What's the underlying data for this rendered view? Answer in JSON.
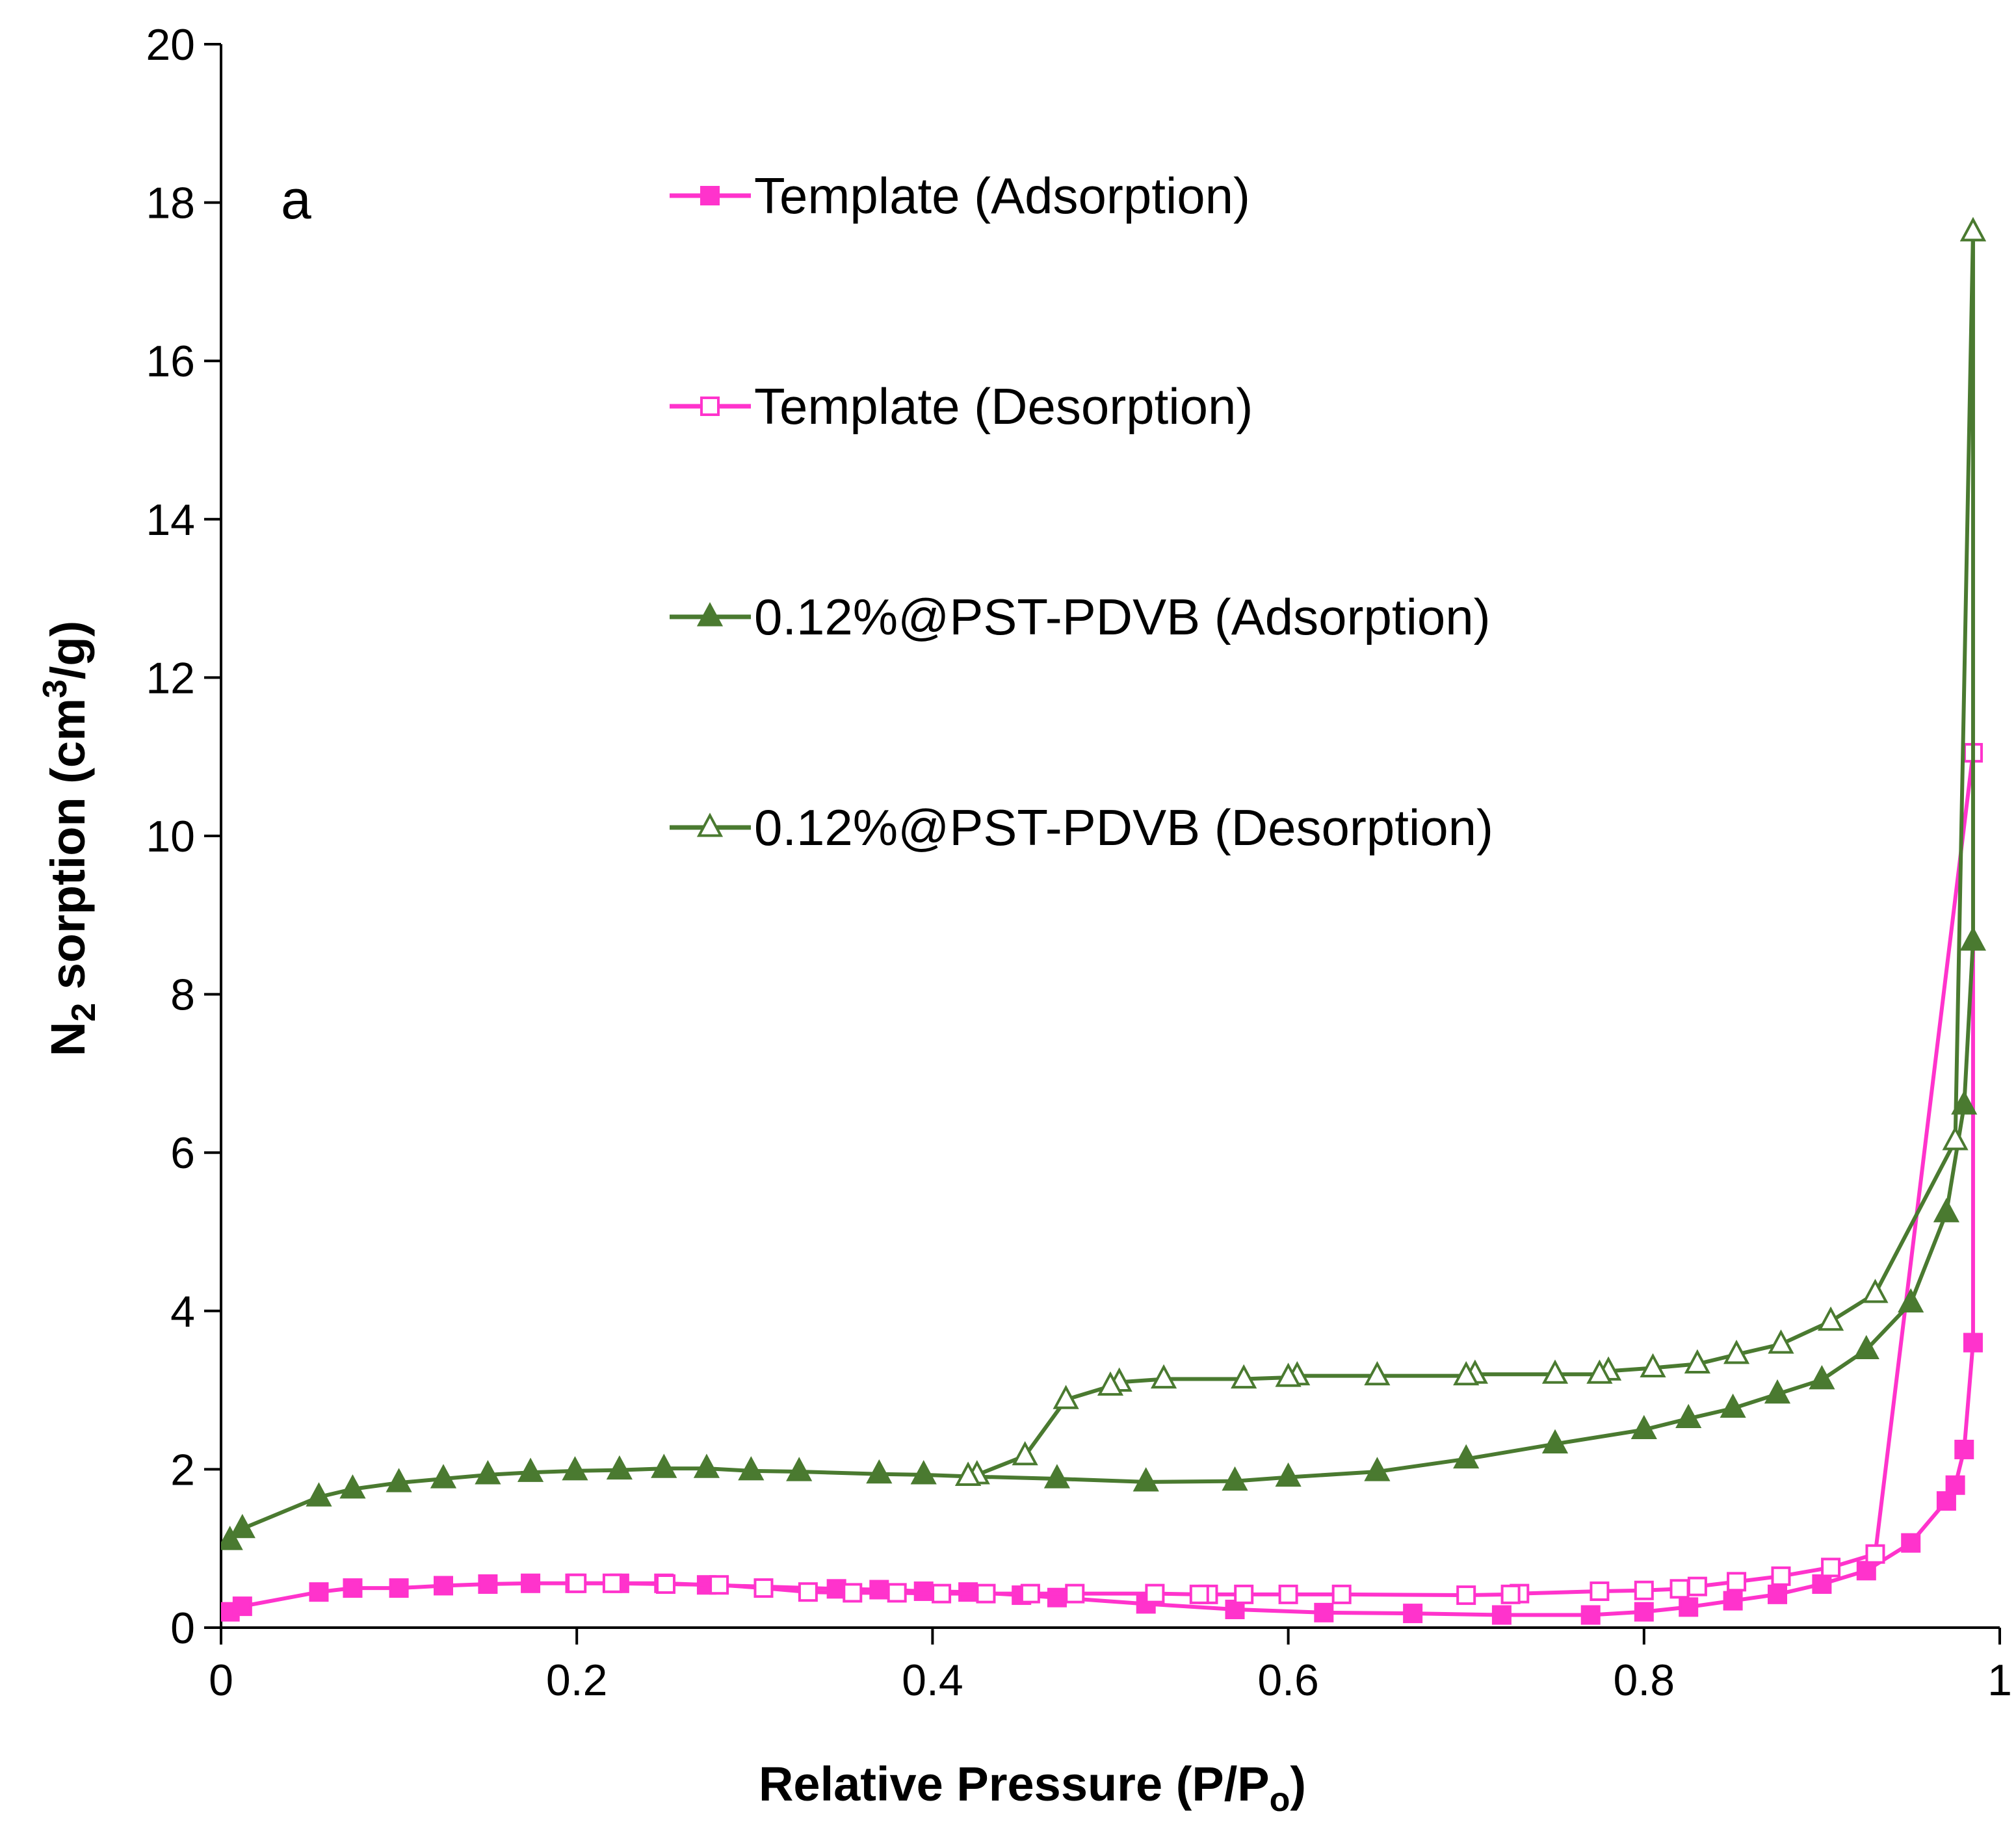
{
  "chart_data": {
    "type": "line",
    "panel_label": "a",
    "xlabel": "Relative Pressure (P/P",
    "xlabel_sub": "o",
    "xlabel_end": ")",
    "ylabel": "N",
    "ylabel_sub": "2",
    "ylabel_mid": " sorption (cm",
    "ylabel_sup": "3",
    "ylabel_end": "/g)",
    "xlim": [
      0,
      1
    ],
    "ylim": [
      0,
      20
    ],
    "xticks": [
      0,
      0.2,
      0.4,
      0.6,
      0.8,
      1
    ],
    "xtick_labels": [
      "0",
      "0.2",
      "0.4",
      "0.6",
      "0.8",
      "1"
    ],
    "yticks": [
      0,
      2,
      4,
      6,
      8,
      10,
      12,
      14,
      16,
      18,
      20
    ],
    "ytick_labels": [
      "0",
      "2",
      "4",
      "6",
      "8",
      "10",
      "12",
      "14",
      "16",
      "18",
      "20"
    ],
    "legend_position": "upper-center",
    "series": [
      {
        "name": "Template (Adsorption)",
        "color": "#ff33cc",
        "marker": "square-filled",
        "x": [
          0.005,
          0.012,
          0.055,
          0.074,
          0.1,
          0.125,
          0.15,
          0.174,
          0.199,
          0.224,
          0.249,
          0.273,
          0.346,
          0.37,
          0.395,
          0.42,
          0.45,
          0.47,
          0.52,
          0.57,
          0.62,
          0.67,
          0.72,
          0.77,
          0.8,
          0.825,
          0.85,
          0.875,
          0.9,
          0.925,
          0.95,
          0.97,
          0.975,
          0.98,
          0.985,
          0.985
        ],
        "y": [
          0.2,
          0.27,
          0.45,
          0.5,
          0.5,
          0.53,
          0.55,
          0.56,
          0.56,
          0.56,
          0.56,
          0.54,
          0.49,
          0.48,
          0.46,
          0.45,
          0.41,
          0.38,
          0.3,
          0.23,
          0.19,
          0.18,
          0.16,
          0.16,
          0.2,
          0.26,
          0.34,
          0.42,
          0.55,
          0.72,
          1.07,
          1.6,
          1.8,
          2.25,
          3.6,
          11.05
        ]
      },
      {
        "name": "Template (Desorption)",
        "color": "#ff33cc",
        "marker": "square-open",
        "x": [
          0.985,
          0.93,
          0.905,
          0.877,
          0.852,
          0.83,
          0.82,
          0.8,
          0.775,
          0.73,
          0.725,
          0.7,
          0.63,
          0.6,
          0.575,
          0.555,
          0.55,
          0.525,
          0.48,
          0.455,
          0.43,
          0.405,
          0.38,
          0.355,
          0.33,
          0.305,
          0.28,
          0.25,
          0.22,
          0.2
        ],
        "y": [
          11.05,
          0.93,
          0.76,
          0.65,
          0.58,
          0.52,
          0.49,
          0.47,
          0.46,
          0.43,
          0.42,
          0.41,
          0.42,
          0.42,
          0.42,
          0.42,
          0.42,
          0.43,
          0.43,
          0.43,
          0.43,
          0.43,
          0.44,
          0.44,
          0.45,
          0.5,
          0.54,
          0.55,
          0.56,
          0.56
        ]
      },
      {
        "name": "0.12%@PST-PDVB (Adsorption)",
        "color": "#4a7a30",
        "marker": "triangle-filled",
        "x": [
          0.005,
          0.012,
          0.055,
          0.074,
          0.1,
          0.125,
          0.15,
          0.174,
          0.199,
          0.224,
          0.249,
          0.273,
          0.298,
          0.325,
          0.37,
          0.395,
          0.42,
          0.47,
          0.52,
          0.57,
          0.6,
          0.65,
          0.7,
          0.75,
          0.8,
          0.825,
          0.85,
          0.875,
          0.9,
          0.925,
          0.95,
          0.97,
          0.98,
          0.985,
          0.985
        ],
        "y": [
          1.1,
          1.25,
          1.65,
          1.75,
          1.83,
          1.88,
          1.93,
          1.96,
          1.98,
          1.99,
          2.01,
          2.01,
          1.98,
          1.97,
          1.94,
          1.93,
          1.91,
          1.88,
          1.84,
          1.85,
          1.9,
          1.97,
          2.13,
          2.32,
          2.5,
          2.64,
          2.77,
          2.95,
          3.13,
          3.51,
          4.1,
          5.24,
          6.6,
          8.67,
          17.63
        ]
      },
      {
        "name": "0.12%@PST-PDVB (Desorption)",
        "color": "#4a7a30",
        "marker": "triangle-open",
        "x": [
          0.985,
          0.975,
          0.93,
          0.905,
          0.877,
          0.852,
          0.83,
          0.805,
          0.78,
          0.775,
          0.75,
          0.705,
          0.7,
          0.65,
          0.605,
          0.6,
          0.575,
          0.53,
          0.505,
          0.5,
          0.475,
          0.452,
          0.425,
          0.42
        ],
        "y": [
          17.63,
          6.15,
          4.22,
          3.87,
          3.58,
          3.45,
          3.33,
          3.28,
          3.24,
          3.2,
          3.2,
          3.2,
          3.18,
          3.18,
          3.18,
          3.16,
          3.14,
          3.14,
          3.1,
          3.05,
          2.88,
          2.17,
          1.93,
          1.91
        ]
      }
    ]
  }
}
